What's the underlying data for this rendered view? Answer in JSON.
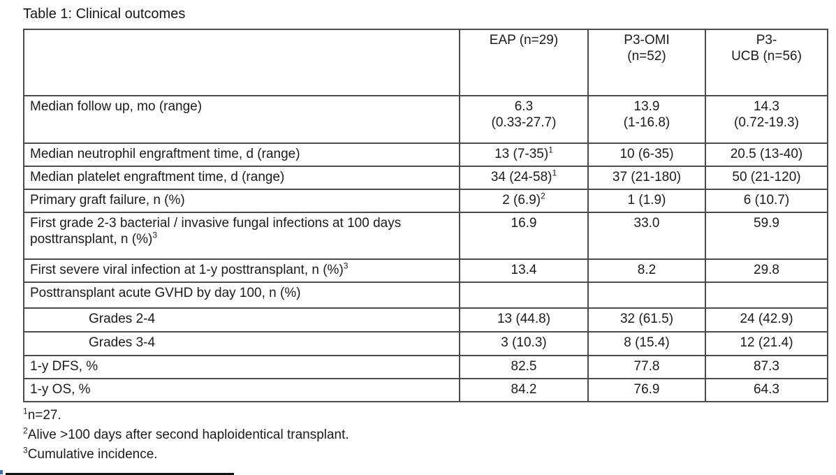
{
  "page": {
    "title": "Table 1: Clinical outcomes"
  },
  "table": {
    "header": {
      "stub": "",
      "cols": [
        {
          "line1": "EAP (n=29)",
          "line2": ""
        },
        {
          "line1": "P3-OMI",
          "line2": "(n=52)"
        },
        {
          "line1": "P3-",
          "line2": "UCB (n=56)"
        }
      ]
    },
    "rows": [
      {
        "label": "Median follow up, mo (range)",
        "label_sup": "",
        "cells": [
          {
            "line1": "6.3",
            "line2": "(0.33-27.7)"
          },
          {
            "line1": "13.9",
            "line2": "(1-16.8)"
          },
          {
            "line1": "14.3",
            "line2": "(0.72-19.3)"
          }
        ]
      },
      {
        "label": "Median neutrophil engraftment time, d (range)",
        "label_sup": "",
        "cells": [
          {
            "text": "13 (7-35)",
            "sup": "1"
          },
          {
            "text": "10 (6-35)",
            "sup": ""
          },
          {
            "text": "20.5 (13-40)",
            "sup": ""
          }
        ]
      },
      {
        "label": "Median platelet engraftment time, d (range)",
        "label_sup": "",
        "cells": [
          {
            "text": "34 (24-58)",
            "sup": "1"
          },
          {
            "text": "37 (21-180)",
            "sup": ""
          },
          {
            "text": "50 (21-120)",
            "sup": ""
          }
        ]
      },
      {
        "label": "Primary graft failure, n (%)",
        "label_sup": "",
        "cells": [
          {
            "text": "2 (6.9)",
            "sup": "2"
          },
          {
            "text": "1 (1.9)",
            "sup": ""
          },
          {
            "text": "6 (10.7)",
            "sup": ""
          }
        ]
      },
      {
        "label": "First grade 2-3 bacterial / invasive fungal infections at 100 days posttransplant, n (%)",
        "label_sup": "3",
        "cells": [
          {
            "text": "16.9",
            "sup": ""
          },
          {
            "text": "33.0",
            "sup": ""
          },
          {
            "text": "59.9",
            "sup": ""
          }
        ]
      },
      {
        "label": "First severe viral infection at 1-y posttransplant, n (%)",
        "label_sup": "3",
        "cells": [
          {
            "text": "13.4",
            "sup": ""
          },
          {
            "text": "8.2",
            "sup": ""
          },
          {
            "text": "29.8",
            "sup": ""
          }
        ]
      },
      {
        "label": "Posttransplant acute GVHD by day 100, n (%)",
        "label_sup": "",
        "cells": [
          {
            "text": "",
            "sup": ""
          },
          {
            "text": "",
            "sup": ""
          },
          {
            "text": "",
            "sup": ""
          }
        ]
      },
      {
        "label": "Grades 2-4",
        "label_sup": "",
        "indent": true,
        "cells": [
          {
            "text": "13 (44.8)",
            "sup": ""
          },
          {
            "text": "32 (61.5)",
            "sup": ""
          },
          {
            "text": "24 (42.9)",
            "sup": ""
          }
        ]
      },
      {
        "label": "Grades 3-4",
        "label_sup": "",
        "indent": true,
        "cells": [
          {
            "text": "3 (10.3)",
            "sup": ""
          },
          {
            "text": "8 (15.4)",
            "sup": ""
          },
          {
            "text": "12 (21.4)",
            "sup": ""
          }
        ]
      },
      {
        "label": "1-y DFS, %",
        "label_sup": "",
        "cells": [
          {
            "text": "82.5",
            "sup": ""
          },
          {
            "text": "77.8",
            "sup": ""
          },
          {
            "text": "87.3",
            "sup": ""
          }
        ]
      },
      {
        "label": "1-y OS, %",
        "label_sup": "",
        "cells": [
          {
            "text": "84.2",
            "sup": ""
          },
          {
            "text": "76.9",
            "sup": ""
          },
          {
            "text": "64.3",
            "sup": ""
          }
        ]
      }
    ]
  },
  "footnotes": [
    {
      "marker": "1",
      "text": "n=27."
    },
    {
      "marker": "2",
      "text": "Alive >100 days after second haploidentical transplant."
    },
    {
      "marker": "3",
      "text": "Cumulative incidence."
    }
  ],
  "colors": {
    "border": "#4b4b4b",
    "text": "#1b1b1b",
    "artifact_bar": "#111111",
    "artifact_blue": "#3b6fb5"
  }
}
